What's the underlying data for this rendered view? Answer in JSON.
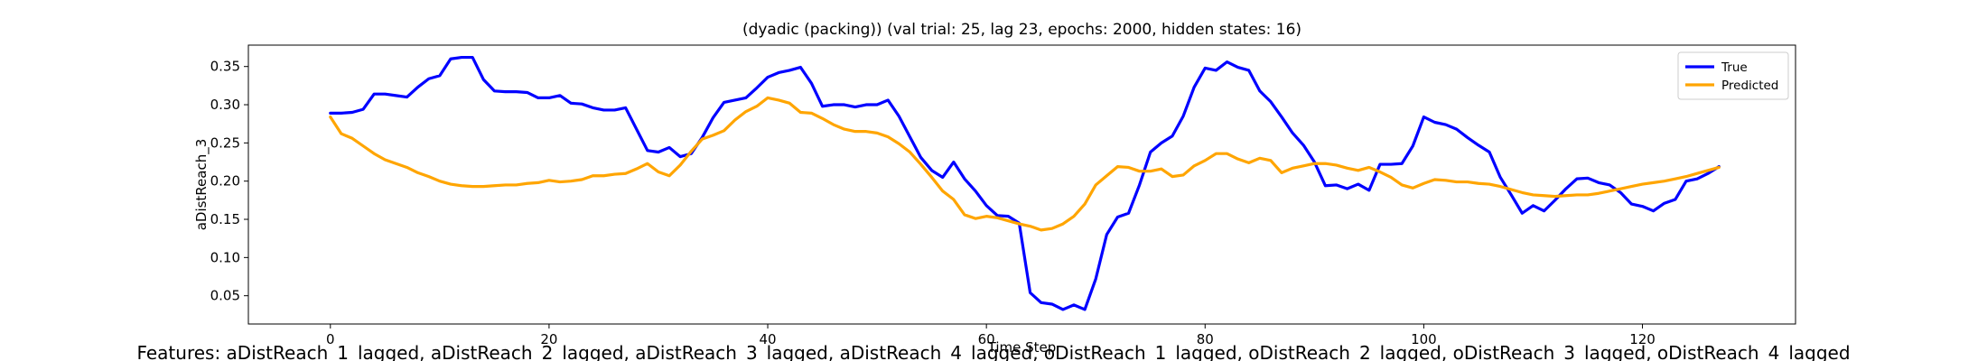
{
  "chart_data": {
    "type": "line",
    "title": "(dyadic (packing)) (val trial: 25, lag 23, epochs: 2000, hidden states: 16)",
    "xlabel": "Time Step",
    "ylabel": "aDistReach_3",
    "xlim": [
      -7.5,
      134
    ],
    "ylim": [
      0.013,
      0.378
    ],
    "xticks": [
      0,
      20,
      40,
      60,
      80,
      100,
      120
    ],
    "yticks": [
      0.05,
      0.1,
      0.15,
      0.2,
      0.25,
      0.3,
      0.35
    ],
    "ytick_labels": [
      "0.05",
      "0.10",
      "0.15",
      "0.20",
      "0.25",
      "0.30",
      "0.35"
    ],
    "grid": false,
    "legend_position": "top-right",
    "features_caption": "Features: aDistReach_1_lagged, aDistReach_2_lagged, aDistReach_3_lagged, aDistReach_4_lagged, oDistReach_1_lagged, oDistReach_2_lagged, oDistReach_3_lagged, oDistReach_4_lagged",
    "series": [
      {
        "name": "True",
        "color": "#0000ff",
        "values": [
          0.289,
          0.289,
          0.29,
          0.294,
          0.314,
          0.314,
          0.312,
          0.31,
          0.323,
          0.334,
          0.338,
          0.36,
          0.362,
          0.362,
          0.333,
          0.318,
          0.317,
          0.317,
          0.316,
          0.309,
          0.309,
          0.312,
          0.302,
          0.301,
          0.296,
          0.293,
          0.293,
          0.296,
          0.268,
          0.24,
          0.238,
          0.244,
          0.232,
          0.236,
          0.257,
          0.283,
          0.303,
          0.306,
          0.309,
          0.322,
          0.336,
          0.342,
          0.345,
          0.349,
          0.328,
          0.298,
          0.3,
          0.3,
          0.297,
          0.3,
          0.3,
          0.306,
          0.285,
          0.258,
          0.231,
          0.214,
          0.205,
          0.225,
          0.203,
          0.187,
          0.168,
          0.155,
          0.154,
          0.145,
          0.054,
          0.041,
          0.039,
          0.032,
          0.038,
          0.032,
          0.072,
          0.13,
          0.153,
          0.158,
          0.195,
          0.238,
          0.25,
          0.259,
          0.285,
          0.323,
          0.348,
          0.345,
          0.356,
          0.349,
          0.345,
          0.318,
          0.304,
          0.284,
          0.263,
          0.247,
          0.225,
          0.194,
          0.195,
          0.19,
          0.196,
          0.188,
          0.222,
          0.222,
          0.223,
          0.246,
          0.284,
          0.277,
          0.274,
          0.268,
          0.257,
          0.247,
          0.238,
          0.205,
          0.182,
          0.158,
          0.168,
          0.161,
          0.175,
          0.19,
          0.203,
          0.204,
          0.198,
          0.195,
          0.185,
          0.17,
          0.167,
          0.161,
          0.171,
          0.176,
          0.2,
          0.203,
          0.21,
          0.219
        ]
      },
      {
        "name": "Predicted",
        "color": "#ffa500",
        "values": [
          0.284,
          0.262,
          0.256,
          0.246,
          0.236,
          0.228,
          0.223,
          0.218,
          0.211,
          0.206,
          0.2,
          0.196,
          0.194,
          0.193,
          0.193,
          0.194,
          0.195,
          0.195,
          0.197,
          0.198,
          0.201,
          0.199,
          0.2,
          0.202,
          0.207,
          0.207,
          0.209,
          0.21,
          0.216,
          0.223,
          0.212,
          0.207,
          0.221,
          0.239,
          0.255,
          0.26,
          0.266,
          0.28,
          0.291,
          0.298,
          0.309,
          0.306,
          0.302,
          0.29,
          0.289,
          0.282,
          0.274,
          0.268,
          0.265,
          0.265,
          0.263,
          0.258,
          0.249,
          0.238,
          0.222,
          0.205,
          0.187,
          0.176,
          0.156,
          0.151,
          0.154,
          0.152,
          0.148,
          0.144,
          0.141,
          0.136,
          0.138,
          0.144,
          0.154,
          0.17,
          0.195,
          0.207,
          0.219,
          0.218,
          0.213,
          0.213,
          0.216,
          0.206,
          0.208,
          0.22,
          0.227,
          0.236,
          0.236,
          0.229,
          0.224,
          0.23,
          0.227,
          0.211,
          0.217,
          0.22,
          0.223,
          0.223,
          0.221,
          0.217,
          0.214,
          0.218,
          0.212,
          0.205,
          0.195,
          0.191,
          0.197,
          0.202,
          0.201,
          0.199,
          0.199,
          0.197,
          0.196,
          0.193,
          0.189,
          0.185,
          0.182,
          0.181,
          0.18,
          0.181,
          0.182,
          0.182,
          0.184,
          0.187,
          0.19,
          0.193,
          0.196,
          0.198,
          0.2,
          0.203,
          0.206,
          0.21,
          0.214,
          0.218
        ]
      }
    ]
  }
}
